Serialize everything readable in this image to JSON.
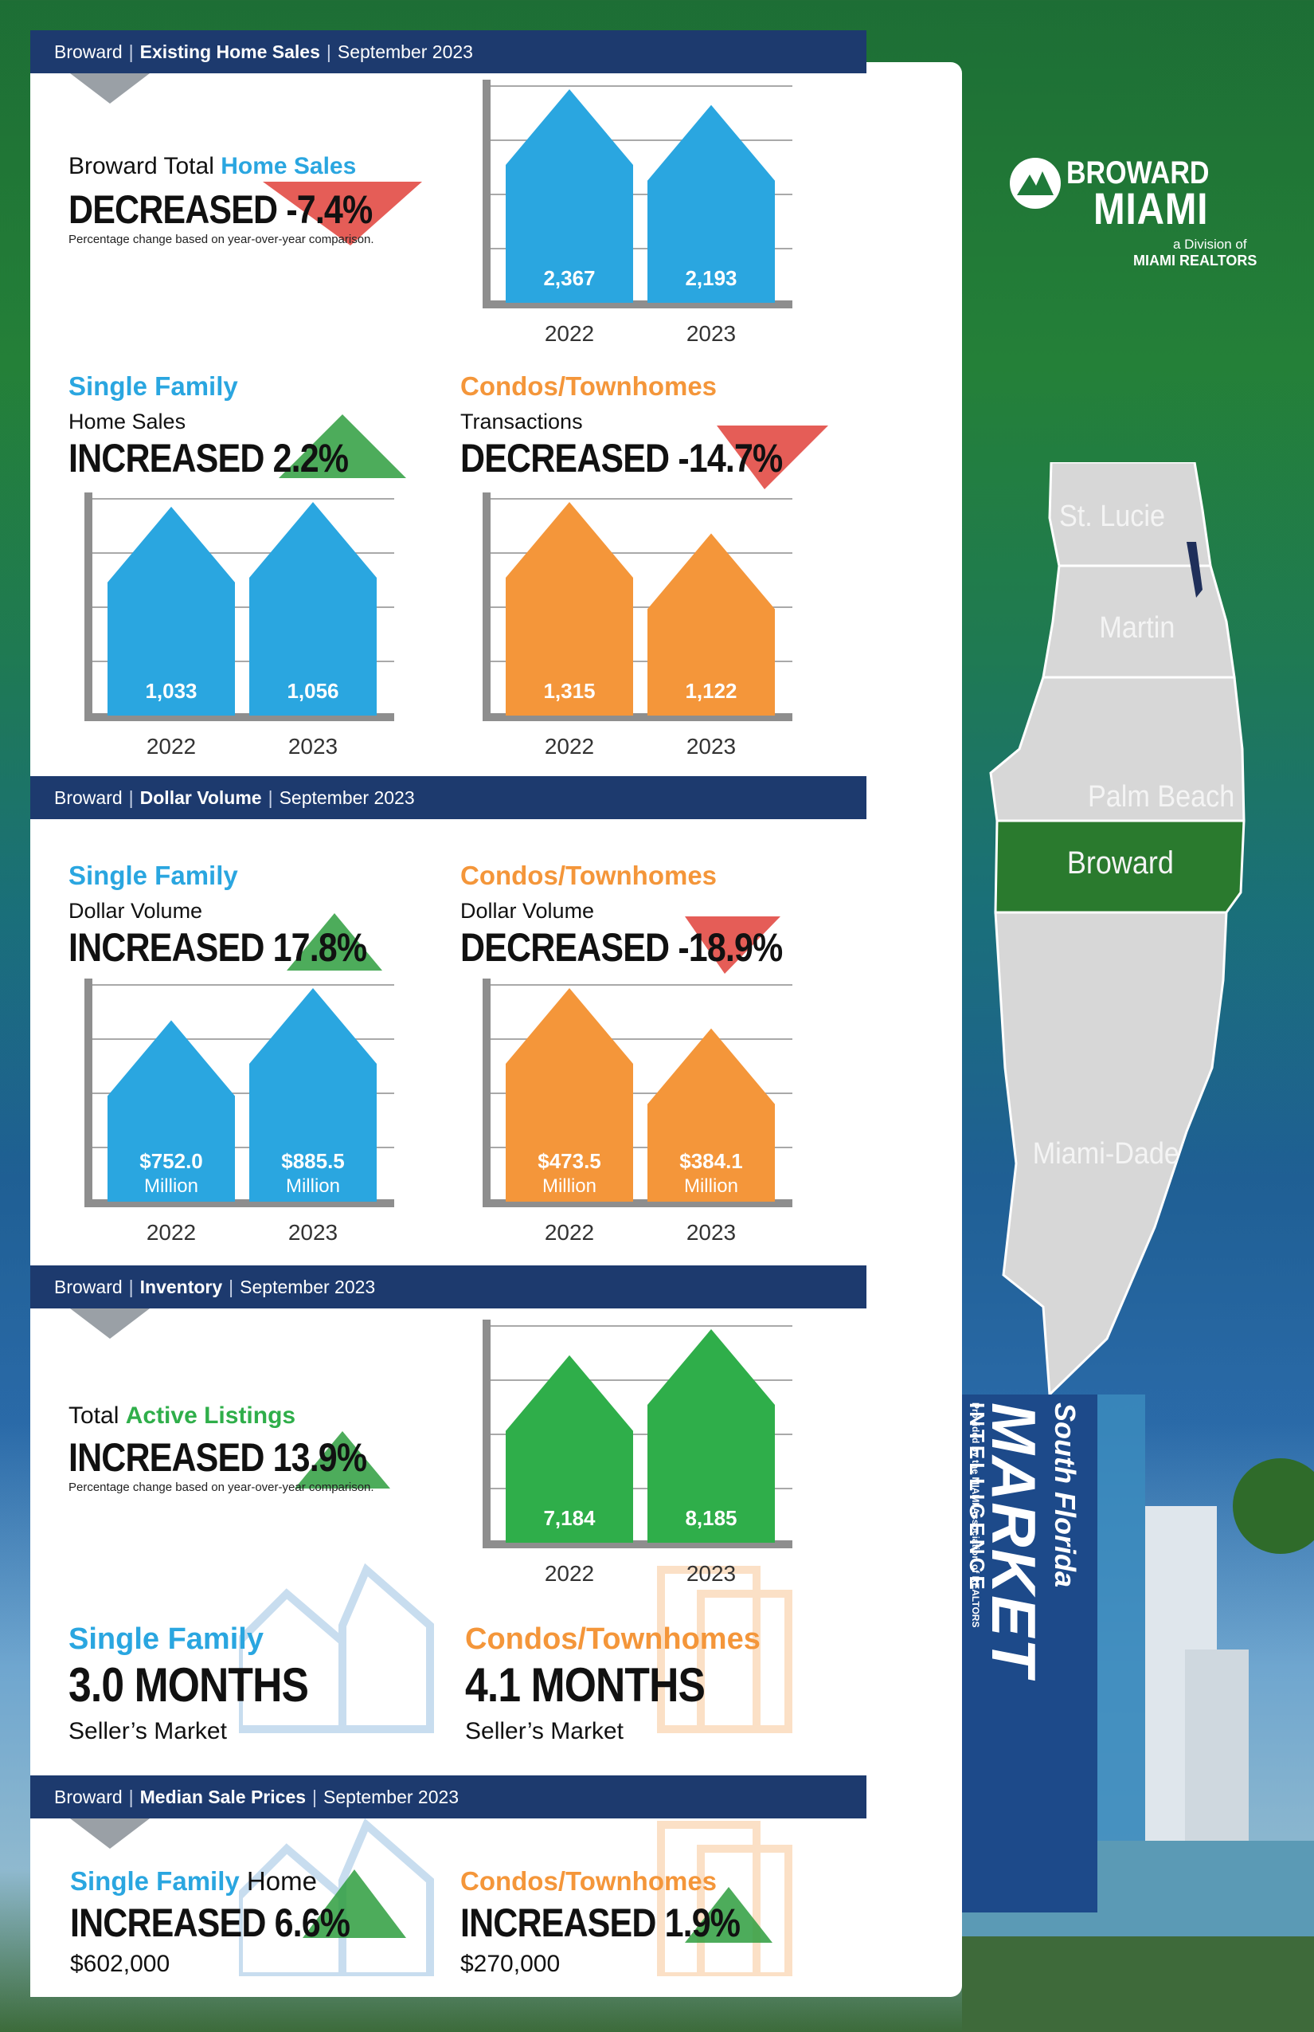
{
  "sections": {
    "sales": {
      "region": "Broward",
      "topic": "Existing Home Sales",
      "period": "September 2023"
    },
    "volume": {
      "region": "Broward",
      "topic": "Dollar Volume",
      "period": "September 2023"
    },
    "inventory": {
      "region": "Broward",
      "topic": "Inventory",
      "period": "September 2023"
    },
    "median": {
      "region": "Broward",
      "topic": "Median Sale Prices",
      "period": "September 2023"
    }
  },
  "total_sales": {
    "label_prefix": "Broward Total ",
    "label_highlight": "Home Sales",
    "headline": "DECREASED -7.4%",
    "note": "Percentage change based on year-over-year comparison."
  },
  "sf_sales": {
    "title": "Single Family",
    "subtitle": "Home Sales",
    "headline": "INCREASED 2.2%"
  },
  "condo_sales": {
    "title": "Condos/Townhomes",
    "subtitle": "Transactions",
    "headline": "DECREASED -14.7%"
  },
  "sf_volume": {
    "title": "Single Family",
    "subtitle": "Dollar Volume",
    "headline": "INCREASED 17.8%"
  },
  "condo_volume": {
    "title": "Condos/Townhomes",
    "subtitle": "Dollar Volume",
    "headline": "DECREASED -18.9%"
  },
  "inventory": {
    "label_prefix": "Total ",
    "label_highlight": "Active Listings",
    "headline": "INCREASED 13.9%",
    "note": "Percentage change based on year-over-year comparison.",
    "sf_title": "Single Family",
    "sf_months": "3.0 MONTHS",
    "sf_market": "Seller’s Market",
    "condo_title": "Condos/Townhomes",
    "condo_months": "4.1 MONTHS",
    "condo_market": "Seller’s Market"
  },
  "median": {
    "sf_title": "Single Family",
    "sf_title_suffix": " Home",
    "sf_headline": "INCREASED 6.6%",
    "sf_price": "$602,000",
    "condo_title": "Condos/Townhomes",
    "condo_headline": "INCREASED 1.9%",
    "condo_price": "$270,000"
  },
  "logo": {
    "line1": "BROWARD",
    "line2": "MIAMI",
    "line3": "a Division of",
    "line4": "MIAMI REALTORS"
  },
  "map_labels": {
    "stlucie": "St. Lucie",
    "martin": "Martin",
    "palmbeach": "Palm Beach",
    "broward": "Broward",
    "miamidade": "Miami-Dade"
  },
  "side_title": {
    "line1": "South Florida",
    "line2": "MARKET",
    "line3": "INTELLIGENCE",
    "line4": "Provided by the MIAMI Association of REALTORS"
  },
  "colors": {
    "blue": "#2aa6e0",
    "orange": "#f4963a",
    "green": "#2fae4a",
    "navy": "#1d3a6e",
    "up": "#2e9e3e",
    "down": "#e0413a"
  },
  "chart_data": [
    {
      "type": "bar",
      "title": "Broward Total Home Sales",
      "categories": [
        "2022",
        "2023"
      ],
      "values": [
        2367,
        2193
      ],
      "labels": [
        "2,367",
        "2,193"
      ],
      "color": "#2aa6e0"
    },
    {
      "type": "bar",
      "title": "Single Family Home Sales",
      "categories": [
        "2022",
        "2023"
      ],
      "values": [
        1033,
        1056
      ],
      "labels": [
        "1,033",
        "1,056"
      ],
      "color": "#2aa6e0"
    },
    {
      "type": "bar",
      "title": "Condos/Townhomes Transactions",
      "categories": [
        "2022",
        "2023"
      ],
      "values": [
        1315,
        1122
      ],
      "labels": [
        "1,315",
        "1,122"
      ],
      "color": "#f4963a"
    },
    {
      "type": "bar",
      "title": "Single Family Dollar Volume",
      "categories": [
        "2022",
        "2023"
      ],
      "values": [
        752.0,
        885.5
      ],
      "labels": [
        "$752.0",
        "$885.5"
      ],
      "unit": "Million",
      "color": "#2aa6e0"
    },
    {
      "type": "bar",
      "title": "Condos/Townhomes Dollar Volume",
      "categories": [
        "2022",
        "2023"
      ],
      "values": [
        473.5,
        384.1
      ],
      "labels": [
        "$473.5",
        "$384.1"
      ],
      "unit": "Million",
      "color": "#f4963a"
    },
    {
      "type": "bar",
      "title": "Total Active Listings",
      "categories": [
        "2022",
        "2023"
      ],
      "values": [
        7184,
        8185
      ],
      "labels": [
        "7,184",
        "8,185"
      ],
      "color": "#2fae4a"
    }
  ]
}
